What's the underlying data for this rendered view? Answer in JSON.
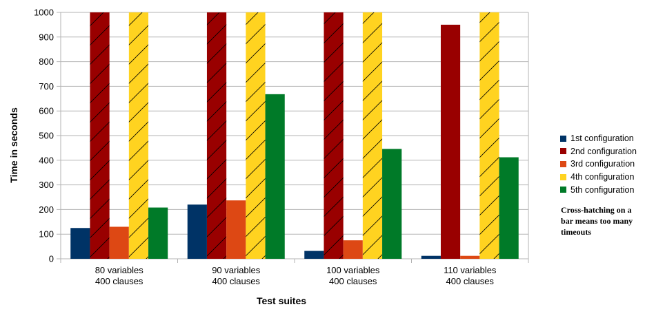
{
  "chart_data": {
    "type": "bar",
    "categories": [
      [
        "80 variables",
        "400 clauses"
      ],
      [
        "90 variables",
        "400 clauses"
      ],
      [
        "100 variables",
        "400 clauses"
      ],
      [
        "110 variables",
        "400 clauses"
      ]
    ],
    "series": [
      {
        "name": "1st configuration",
        "color": "#003366",
        "values": [
          125,
          220,
          32,
          12
        ],
        "hatched": [
          false,
          false,
          false,
          false
        ]
      },
      {
        "name": "2nd configuration",
        "color": "#990000",
        "values": [
          1000,
          1000,
          1000,
          950
        ],
        "hatched": [
          true,
          true,
          true,
          false
        ]
      },
      {
        "name": "3rd configuration",
        "color": "#dd4814",
        "values": [
          130,
          237,
          75,
          12
        ],
        "hatched": [
          false,
          false,
          false,
          false
        ]
      },
      {
        "name": "4th configuration",
        "color": "#ffd320",
        "values": [
          1000,
          1000,
          1000,
          1000
        ],
        "hatched": [
          true,
          true,
          true,
          true
        ]
      },
      {
        "name": "5th configuration",
        "color": "#007a28",
        "values": [
          208,
          668,
          446,
          412
        ],
        "hatched": [
          false,
          false,
          false,
          false
        ]
      }
    ],
    "title": "",
    "xlabel": "Test suites",
    "ylabel": "Time in seconds",
    "ylim": [
      0,
      1000
    ],
    "yticks": [
      0,
      100,
      200,
      300,
      400,
      500,
      600,
      700,
      800,
      900,
      1000
    ],
    "grid": true,
    "legend_position": "right",
    "note": "Cross-hatching on a bar means too many timeouts"
  }
}
